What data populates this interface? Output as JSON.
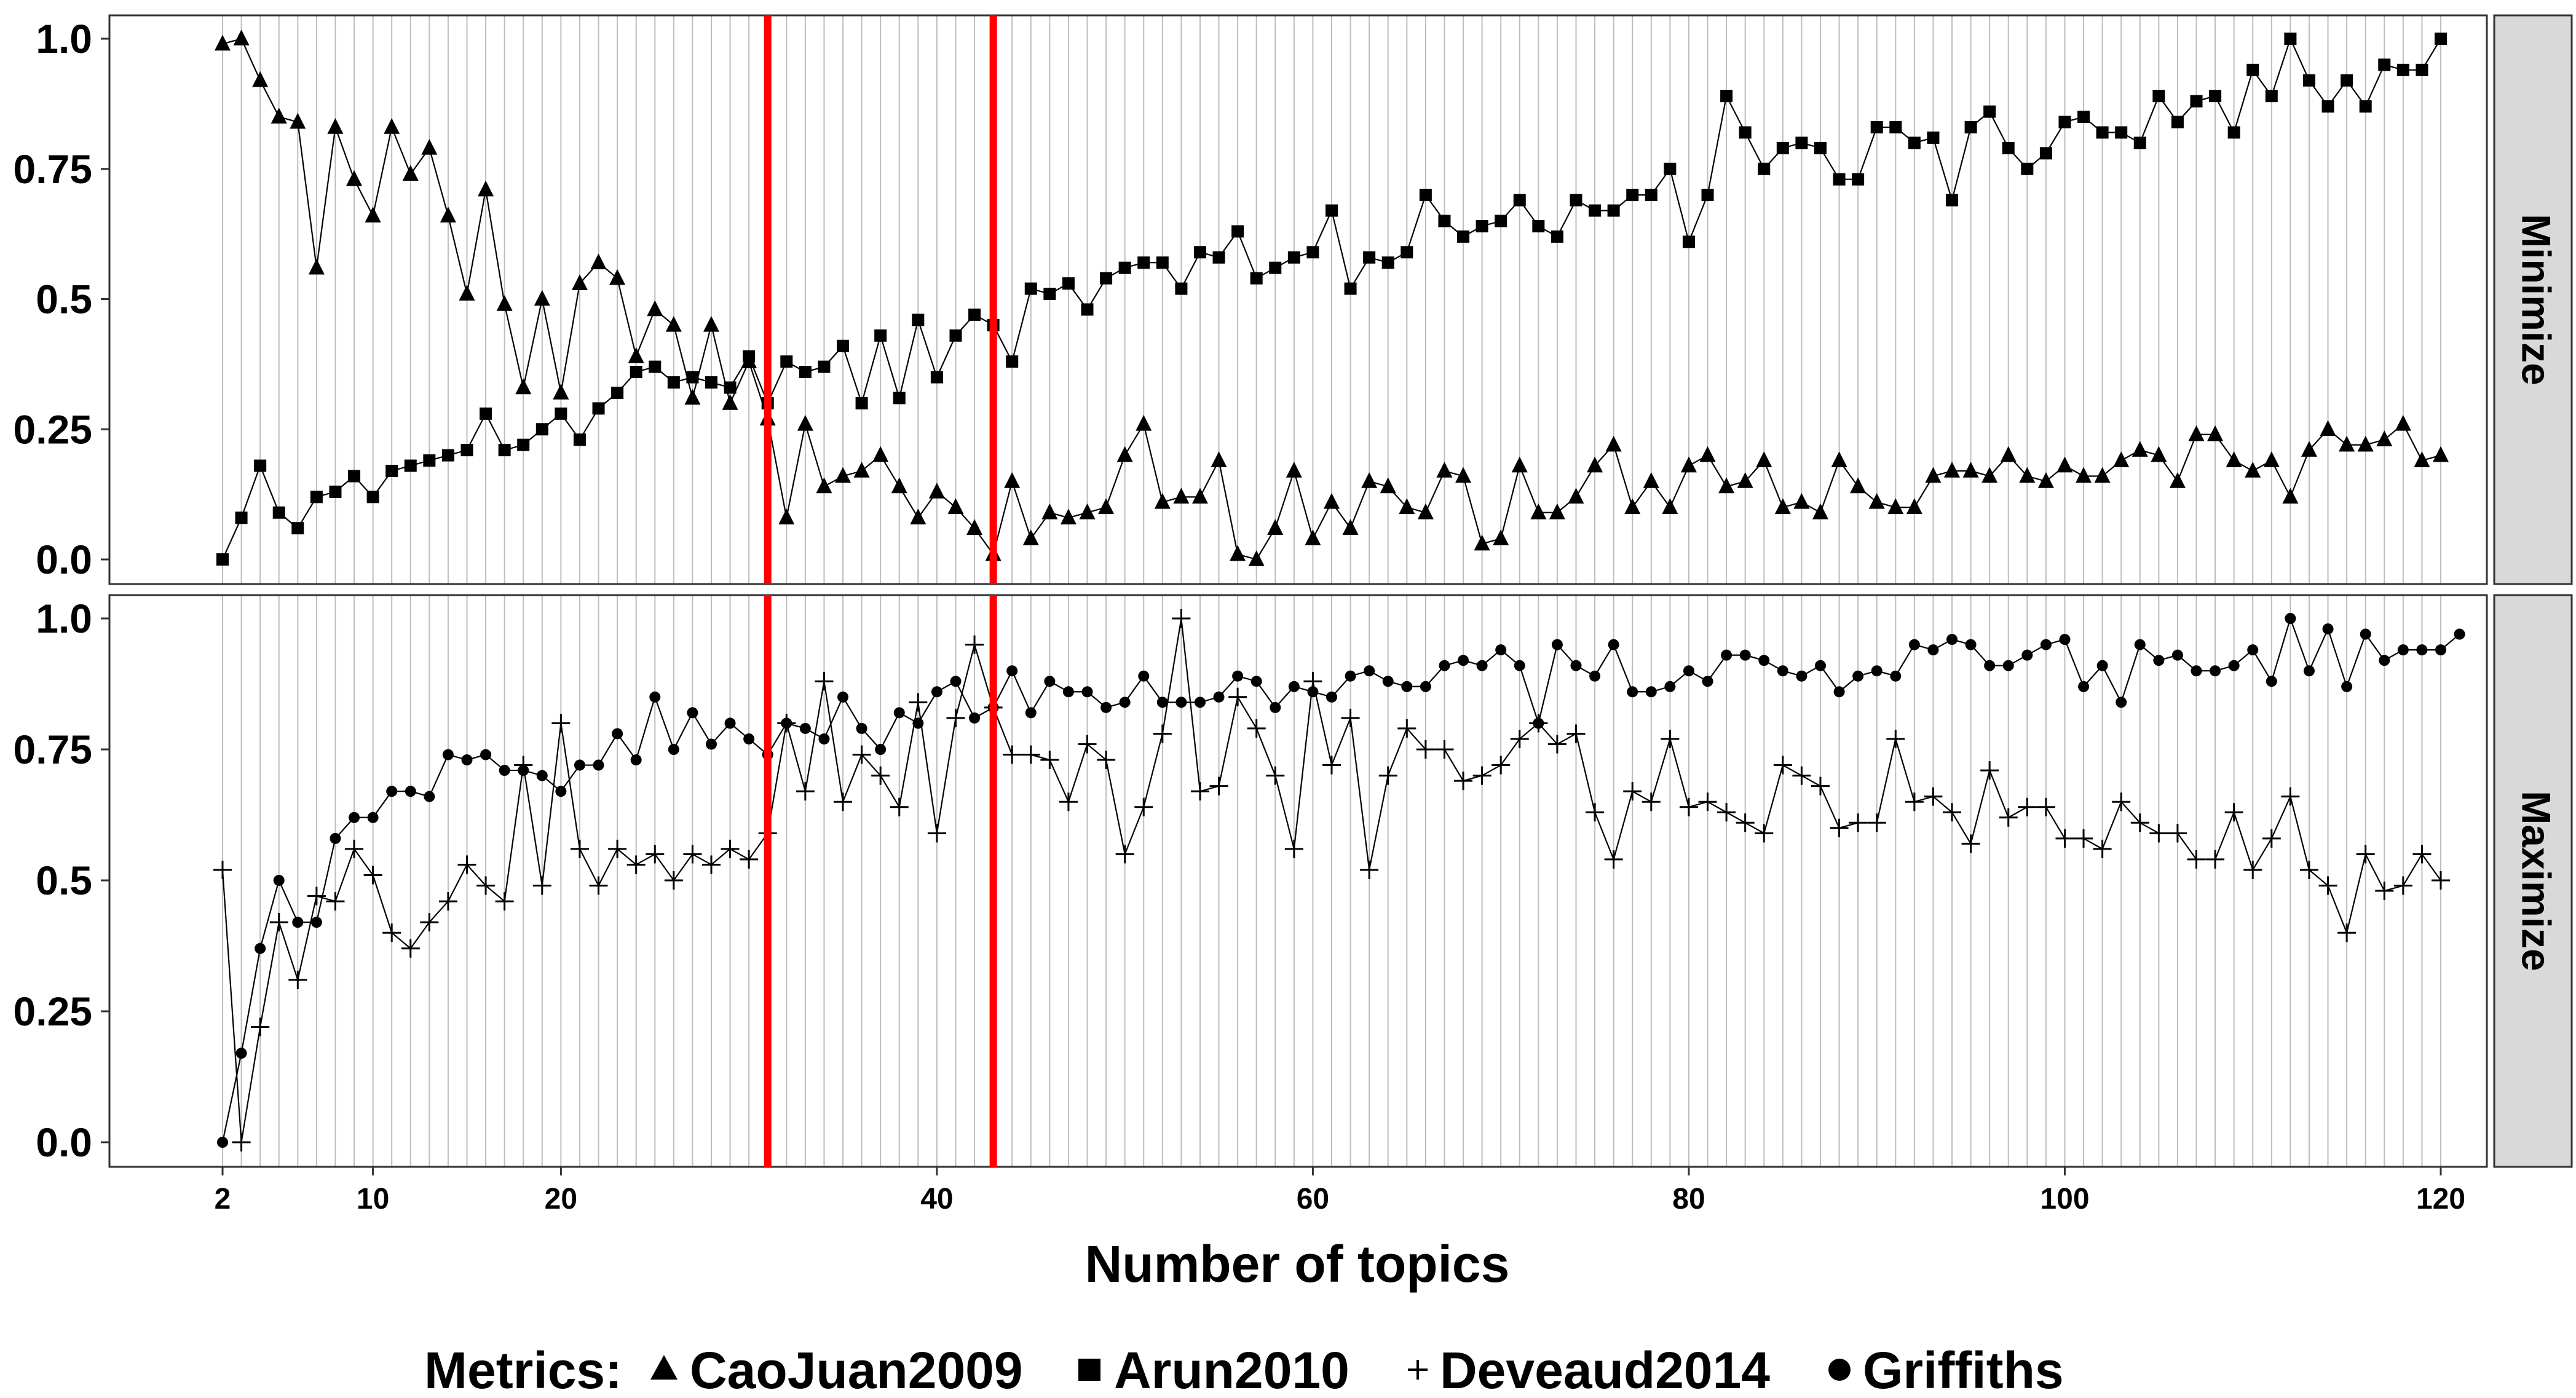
{
  "chart_data": {
    "type": "line",
    "xlabel": "Number of topics",
    "x_ticks": [
      2,
      10,
      20,
      40,
      60,
      80,
      100,
      120
    ],
    "xlim": [
      2,
      120
    ],
    "ylim": [
      0,
      1
    ],
    "y_ticks": [
      "0.0",
      "0.25",
      "0.5",
      "0.75",
      "1.0"
    ],
    "grid": "vertical lines at each topic number",
    "legend": {
      "title": "Metrics:",
      "position": "bottom",
      "entries": [
        {
          "label": "CaoJuan2009",
          "marker": "triangle"
        },
        {
          "label": "Arun2010",
          "marker": "square"
        },
        {
          "label": "Deveaud2014",
          "marker": "plus"
        },
        {
          "label": "Griffiths",
          "marker": "circle"
        }
      ]
    },
    "reference_lines": {
      "color": "#ff0000",
      "x": [
        31,
        43
      ]
    },
    "facets": [
      {
        "label": "Minimize",
        "series": [
          {
            "name": "CaoJuan2009",
            "marker": "triangle",
            "x_start": 2,
            "x_step": 1,
            "values": [
              0.99,
              1.0,
              0.92,
              0.85,
              0.84,
              0.56,
              0.83,
              0.73,
              0.66,
              0.83,
              0.74,
              0.79,
              0.66,
              0.51,
              0.71,
              0.49,
              0.33,
              0.5,
              0.32,
              0.53,
              0.57,
              0.54,
              0.39,
              0.48,
              0.45,
              0.31,
              0.45,
              0.3,
              0.38,
              0.27,
              0.08,
              0.26,
              0.14,
              0.16,
              0.17,
              0.2,
              0.14,
              0.08,
              0.13,
              0.1,
              0.06,
              0.01,
              0.15,
              0.04,
              0.09,
              0.08,
              0.09,
              0.1,
              0.2,
              0.26,
              0.11,
              0.12,
              0.12,
              0.19,
              0.01,
              0.0,
              0.06,
              0.17,
              0.04,
              0.11,
              0.06,
              0.15,
              0.14,
              0.1,
              0.09,
              0.17,
              0.16,
              0.03,
              0.04,
              0.18,
              0.09,
              0.09,
              0.12,
              0.18,
              0.22,
              0.1,
              0.15,
              0.1,
              0.18,
              0.2,
              0.14,
              0.15,
              0.19,
              0.1,
              0.11,
              0.09,
              0.19,
              0.14,
              0.11,
              0.1,
              0.1,
              0.16,
              0.17,
              0.17,
              0.16,
              0.2,
              0.16,
              0.15,
              0.18,
              0.16,
              0.16,
              0.19,
              0.21,
              0.2,
              0.15,
              0.24,
              0.24,
              0.19,
              0.17,
              0.19,
              0.12,
              0.21,
              0.25,
              0.22,
              0.22,
              0.23,
              0.26,
              0.19,
              0.2
            ]
          },
          {
            "name": "Arun2010",
            "marker": "square",
            "x_start": 2,
            "x_step": 1,
            "values": [
              0.0,
              0.08,
              0.18,
              0.09,
              0.06,
              0.12,
              0.13,
              0.16,
              0.12,
              0.17,
              0.18,
              0.19,
              0.2,
              0.21,
              0.28,
              0.21,
              0.22,
              0.25,
              0.28,
              0.23,
              0.29,
              0.32,
              0.36,
              0.37,
              0.34,
              0.35,
              0.34,
              0.33,
              0.39,
              0.3,
              0.38,
              0.36,
              0.37,
              0.41,
              0.3,
              0.43,
              0.31,
              0.46,
              0.35,
              0.43,
              0.47,
              0.45,
              0.38,
              0.52,
              0.51,
              0.53,
              0.48,
              0.54,
              0.56,
              0.57,
              0.57,
              0.52,
              0.59,
              0.58,
              0.63,
              0.54,
              0.56,
              0.58,
              0.59,
              0.67,
              0.52,
              0.58,
              0.57,
              0.59,
              0.7,
              0.65,
              0.62,
              0.64,
              0.65,
              0.69,
              0.64,
              0.62,
              0.69,
              0.67,
              0.67,
              0.7,
              0.7,
              0.75,
              0.61,
              0.7,
              0.89,
              0.82,
              0.75,
              0.79,
              0.8,
              0.79,
              0.73,
              0.73,
              0.83,
              0.83,
              0.8,
              0.81,
              0.69,
              0.83,
              0.86,
              0.79,
              0.75,
              0.78,
              0.84,
              0.85,
              0.82,
              0.82,
              0.8,
              0.89,
              0.84,
              0.88,
              0.89,
              0.82,
              0.94,
              0.89,
              1.0,
              0.92,
              0.87,
              0.92,
              0.87,
              0.95,
              0.94,
              0.94,
              1.0
            ]
          }
        ]
      },
      {
        "label": "Maximize",
        "series": [
          {
            "name": "Deveaud2014",
            "marker": "plus",
            "x_start": 2,
            "x_step": 1,
            "values": [
              0.52,
              0.0,
              0.22,
              0.42,
              0.31,
              0.47,
              0.46,
              0.56,
              0.51,
              0.4,
              0.37,
              0.42,
              0.46,
              0.53,
              0.49,
              0.46,
              0.72,
              0.49,
              0.8,
              0.56,
              0.49,
              0.56,
              0.53,
              0.55,
              0.5,
              0.55,
              0.53,
              0.56,
              0.54,
              0.59,
              0.8,
              0.67,
              0.88,
              0.65,
              0.74,
              0.7,
              0.64,
              0.84,
              0.59,
              0.81,
              0.95,
              0.83,
              0.74,
              0.74,
              0.73,
              0.65,
              0.76,
              0.73,
              0.55,
              0.64,
              0.78,
              1.0,
              0.67,
              0.68,
              0.85,
              0.79,
              0.7,
              0.56,
              0.88,
              0.72,
              0.81,
              0.52,
              0.7,
              0.79,
              0.75,
              0.75,
              0.69,
              0.7,
              0.72,
              0.77,
              0.8,
              0.76,
              0.78,
              0.63,
              0.54,
              0.67,
              0.65,
              0.77,
              0.64,
              0.65,
              0.63,
              0.61,
              0.59,
              0.72,
              0.7,
              0.68,
              0.6,
              0.61,
              0.61,
              0.77,
              0.65,
              0.66,
              0.63,
              0.57,
              0.71,
              0.62,
              0.64,
              0.64,
              0.58,
              0.58,
              0.56,
              0.65,
              0.61,
              0.59,
              0.59,
              0.54,
              0.54,
              0.63,
              0.52,
              0.58,
              0.66,
              0.52,
              0.49,
              0.4,
              0.55,
              0.48,
              0.49,
              0.55,
              0.5
            ]
          },
          {
            "name": "Griffiths",
            "marker": "circle",
            "x_start": 2,
            "x_step": 1,
            "values": [
              0.0,
              0.17,
              0.37,
              0.5,
              0.42,
              0.42,
              0.58,
              0.62,
              0.62,
              0.67,
              0.67,
              0.66,
              0.74,
              0.73,
              0.74,
              0.71,
              0.71,
              0.7,
              0.67,
              0.72,
              0.72,
              0.78,
              0.73,
              0.85,
              0.75,
              0.82,
              0.76,
              0.8,
              0.77,
              0.74,
              0.8,
              0.79,
              0.77,
              0.85,
              0.79,
              0.75,
              0.82,
              0.8,
              0.86,
              0.88,
              0.81,
              0.83,
              0.9,
              0.82,
              0.88,
              0.86,
              0.86,
              0.83,
              0.84,
              0.89,
              0.84,
              0.84,
              0.84,
              0.85,
              0.89,
              0.88,
              0.83,
              0.87,
              0.86,
              0.85,
              0.89,
              0.9,
              0.88,
              0.87,
              0.87,
              0.91,
              0.92,
              0.91,
              0.94,
              0.91,
              0.8,
              0.95,
              0.91,
              0.89,
              0.95,
              0.86,
              0.86,
              0.87,
              0.9,
              0.88,
              0.93,
              0.93,
              0.92,
              0.9,
              0.89,
              0.91,
              0.86,
              0.89,
              0.9,
              0.89,
              0.95,
              0.94,
              0.96,
              0.95,
              0.91,
              0.91,
              0.93,
              0.95,
              0.96,
              0.87,
              0.91,
              0.84,
              0.95,
              0.92,
              0.93,
              0.9,
              0.9,
              0.91,
              0.94,
              0.88,
              1.0,
              0.9,
              0.98,
              0.87,
              0.97,
              0.92,
              0.94,
              0.94,
              0.94,
              0.97
            ]
          }
        ]
      }
    ]
  }
}
